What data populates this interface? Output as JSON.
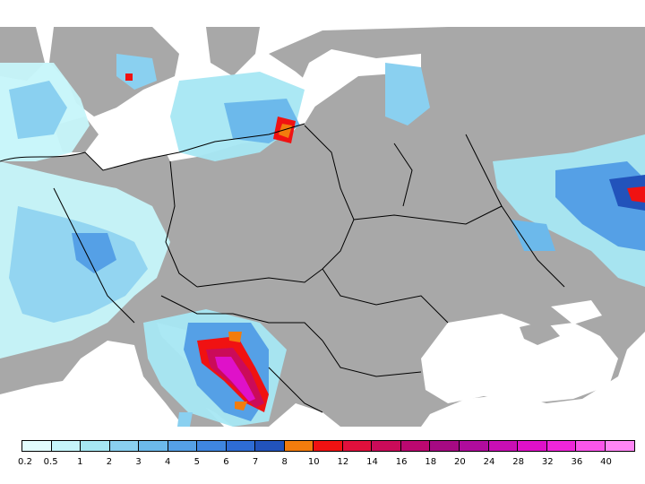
{
  "map": {
    "type": "precipitation-map",
    "region": "Central and Eastern Europe",
    "ocean_color": "#ffffff",
    "land_no_data_color": "#a8a8a8",
    "border_color": "#000000"
  },
  "legend": {
    "ticks": [
      "0.2",
      "0.5",
      "1",
      "2",
      "3",
      "4",
      "5",
      "6",
      "7",
      "8",
      "10",
      "12",
      "14",
      "16",
      "18",
      "20",
      "24",
      "28",
      "32",
      "36",
      "40"
    ],
    "colors": [
      "#e2fcfd",
      "#c6f5fa",
      "#a6e7f3",
      "#8ad0f0",
      "#6cb9eb",
      "#55a0e6",
      "#3f86e0",
      "#2e6cd4",
      "#2253bb",
      "#f27c0d",
      "#f01212",
      "#e0103c",
      "#cb0b59",
      "#bb0870",
      "#a60a83",
      "#b00c9d",
      "#c80fb4",
      "#df11c9",
      "#ef26d9",
      "#fa56ea",
      "#ff86f5"
    ]
  }
}
